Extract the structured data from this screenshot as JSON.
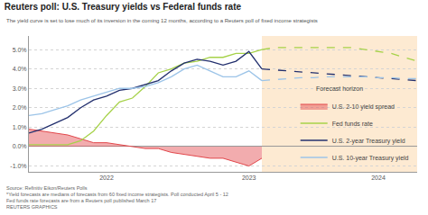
{
  "chart_data": {
    "type": "line",
    "title": "Reuters poll: U.S. Treasury yields vs Federal funds rate",
    "subtitle": "The yield curve is set to lose much of its inversion in the coming 12 months, according to a Reuters poll of fixed income strategists",
    "notes": [
      "Source: Refinitiv Eikon/Reuters Polls",
      "*Yield forecasts are medians of forecasts from 60 fixed income strategists. Poll conducted April 5 - 12",
      "Fed funds rate forecasts are from a Reuters poll published March 17",
      "REUTERS GRAPHICS"
    ],
    "annotations": [
      {
        "text": "Forecast horizon"
      }
    ],
    "categories": [
      null,
      null,
      null,
      null,
      null,
      null,
      "2022",
      null,
      null,
      null,
      null,
      null,
      null,
      null,
      null,
      null,
      null,
      "2023",
      null,
      null,
      null,
      null,
      null,
      null,
      null,
      null,
      null,
      "2024",
      null,
      null,
      null
    ],
    "series": [
      {
        "name": "Fed funds rate",
        "color": "#a6d249",
        "type": "line",
        "line_style": "solid",
        "values": [
          0.1,
          0.1,
          0.1,
          0.1,
          0.3,
          0.8,
          1.6,
          2.3,
          2.5,
          3.1,
          3.8,
          4.0,
          4.3,
          4.4,
          4.6,
          4.6,
          4.8,
          4.8,
          5.0,
          null,
          null,
          null,
          null,
          null,
          null,
          null,
          null,
          null,
          null,
          null,
          null
        ],
        "forecast": [
          null,
          null,
          null,
          null,
          null,
          null,
          null,
          null,
          null,
          null,
          null,
          null,
          null,
          null,
          null,
          null,
          null,
          null,
          5.0,
          5.1,
          5.1,
          5.1,
          5.1,
          5.1,
          5.1,
          5.1,
          5.0,
          4.9,
          4.8,
          4.6,
          4.4
        ]
      },
      {
        "name": "U.S. 2-year Treasury yield",
        "color": "#23306e",
        "type": "line",
        "line_style": "solid",
        "values": [
          0.7,
          0.9,
          1.2,
          1.5,
          2.0,
          2.4,
          2.6,
          2.9,
          3.0,
          3.2,
          3.4,
          3.9,
          4.3,
          4.5,
          4.4,
          4.2,
          4.4,
          4.9,
          4.0,
          null,
          null,
          null,
          null,
          null,
          null,
          null,
          null,
          null,
          null,
          null,
          null
        ],
        "forecast": [
          null,
          null,
          null,
          null,
          null,
          null,
          null,
          null,
          null,
          null,
          null,
          null,
          null,
          null,
          null,
          null,
          null,
          null,
          4.0,
          3.95,
          3.9,
          3.85,
          3.8,
          3.75,
          3.7,
          3.65,
          3.6,
          3.55,
          3.5,
          3.45,
          3.4
        ]
      },
      {
        "name": "U.S. 10-year Treasury yield",
        "color": "#9cc4e8",
        "type": "line",
        "line_style": "solid",
        "values": [
          1.6,
          1.7,
          1.9,
          2.1,
          2.4,
          2.6,
          2.8,
          3.0,
          3.0,
          3.1,
          3.3,
          3.6,
          4.0,
          4.2,
          3.9,
          3.6,
          3.6,
          3.9,
          3.4,
          null,
          null,
          null,
          null,
          null,
          null,
          null,
          null,
          null,
          null,
          null,
          null
        ],
        "forecast": [
          null,
          null,
          null,
          null,
          null,
          null,
          null,
          null,
          null,
          null,
          null,
          null,
          null,
          null,
          null,
          null,
          null,
          null,
          3.4,
          3.45,
          3.5,
          3.55,
          3.55,
          3.6,
          3.6,
          3.6,
          3.6,
          3.55,
          3.55,
          3.5,
          3.5
        ]
      },
      {
        "name": "U.S. 2-10 yield spread",
        "color": "#e2474b",
        "type": "area",
        "values": [
          0.9,
          0.8,
          0.7,
          0.6,
          0.4,
          0.2,
          0.2,
          0.1,
          0.0,
          -0.1,
          -0.1,
          -0.3,
          -0.4,
          -0.5,
          -0.6,
          -0.6,
          -0.8,
          -1.0,
          -0.6,
          null,
          null,
          null,
          null,
          null,
          null,
          null,
          null,
          null,
          null,
          null,
          null
        ]
      }
    ],
    "ylim": [
      -1.3,
      5.7
    ],
    "yticks": [
      {
        "value": 5,
        "label": "5.0%"
      },
      {
        "value": 4,
        "label": "4.0%"
      },
      {
        "value": 3,
        "label": "3.0%"
      },
      {
        "value": 2,
        "label": "2.0%"
      },
      {
        "value": 1,
        "label": "1.0%"
      },
      {
        "value": 0,
        "label": "0.0%"
      },
      {
        "value": -1,
        "label": "-1.0%"
      }
    ],
    "grid": true,
    "legend": "lower right"
  }
}
